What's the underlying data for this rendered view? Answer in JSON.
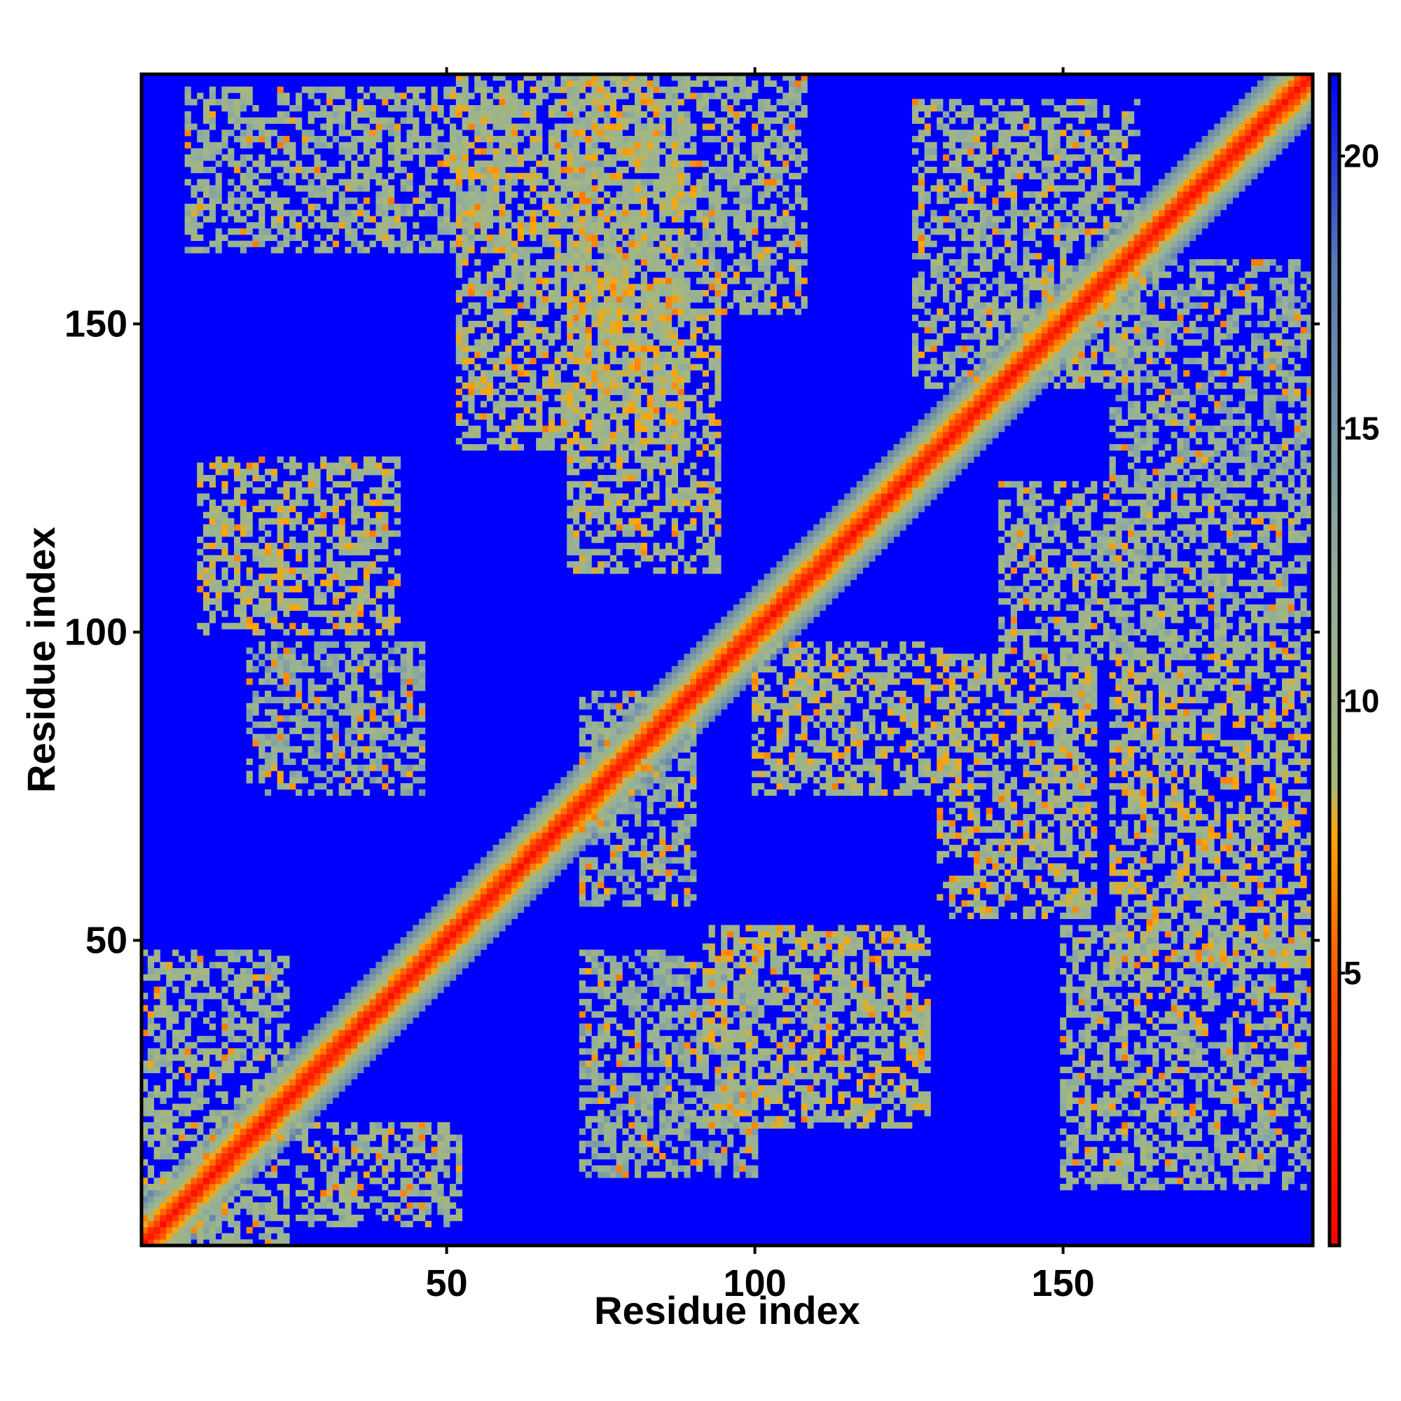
{
  "chart_data": {
    "type": "heatmap",
    "title": "",
    "xlabel": "Residue index",
    "ylabel": "Residue index",
    "n_residues": 190,
    "xlim": [
      1,
      190
    ],
    "ylim": [
      1,
      190
    ],
    "x_ticks": [
      50,
      100,
      150
    ],
    "y_ticks": [
      50,
      100,
      150
    ],
    "x_tick_labels": [
      "50",
      "100",
      "150"
    ],
    "y_tick_labels": [
      "50",
      "100",
      "150"
    ],
    "colorbar": {
      "range": [
        0,
        21.5
      ],
      "ticks": [
        5,
        10,
        15,
        20
      ],
      "tick_labels": [
        "5",
        "10",
        "15",
        "20"
      ],
      "stops": [
        {
          "value": 0,
          "color": "#ff0000"
        },
        {
          "value": 4.5,
          "color": "#ff4a00"
        },
        {
          "value": 7.5,
          "color": "#ffa500"
        },
        {
          "value": 8.5,
          "color": "#a8b87a"
        },
        {
          "value": 12,
          "color": "#94b09a"
        },
        {
          "value": 18,
          "color": "#5a7ab5"
        },
        {
          "value": 21.5,
          "color": "#0000ff"
        }
      ]
    },
    "background_value": 22,
    "background_color": "#0000ff",
    "diagonal_band": {
      "center_value": 0.5,
      "width_residues": 14
    },
    "contact_bands": [
      {
        "x": [
          1,
          24
        ],
        "y": [
          1,
          48
        ],
        "value": 11
      },
      {
        "x": [
          26,
          52
        ],
        "y": [
          4,
          20
        ],
        "value": 11
      },
      {
        "x": [
          10,
          42
        ],
        "y": [
          100,
          128
        ],
        "value": 10
      },
      {
        "x": [
          18,
          46
        ],
        "y": [
          74,
          98
        ],
        "value": 12
      },
      {
        "x": [
          8,
          60
        ],
        "y": [
          162,
          188
        ],
        "value": 11
      },
      {
        "x": [
          52,
          88
        ],
        "y": [
          130,
          190
        ],
        "value": 10
      },
      {
        "x": [
          70,
          94
        ],
        "y": [
          110,
          156
        ],
        "value": 10
      },
      {
        "x": [
          70,
          108
        ],
        "y": [
          152,
          190
        ],
        "value": 11
      },
      {
        "x": [
          72,
          90
        ],
        "y": [
          56,
          90
        ],
        "value": 12
      },
      {
        "x": [
          92,
          128
        ],
        "y": [
          20,
          52
        ],
        "value": 10
      },
      {
        "x": [
          72,
          100
        ],
        "y": [
          12,
          48
        ],
        "value": 12
      },
      {
        "x": [
          100,
          130
        ],
        "y": [
          74,
          98
        ],
        "value": 10
      },
      {
        "x": [
          130,
          155
        ],
        "y": [
          54,
          96
        ],
        "value": 10
      },
      {
        "x": [
          140,
          190
        ],
        "y": [
          96,
          124
        ],
        "value": 11
      },
      {
        "x": [
          158,
          190
        ],
        "y": [
          46,
          96
        ],
        "value": 10
      },
      {
        "x": [
          150,
          190
        ],
        "y": [
          10,
          52
        ],
        "value": 11
      },
      {
        "x": [
          126,
          162
        ],
        "y": [
          140,
          186
        ],
        "value": 11
      },
      {
        "x": [
          158,
          190
        ],
        "y": [
          124,
          160
        ],
        "value": 12
      }
    ]
  }
}
